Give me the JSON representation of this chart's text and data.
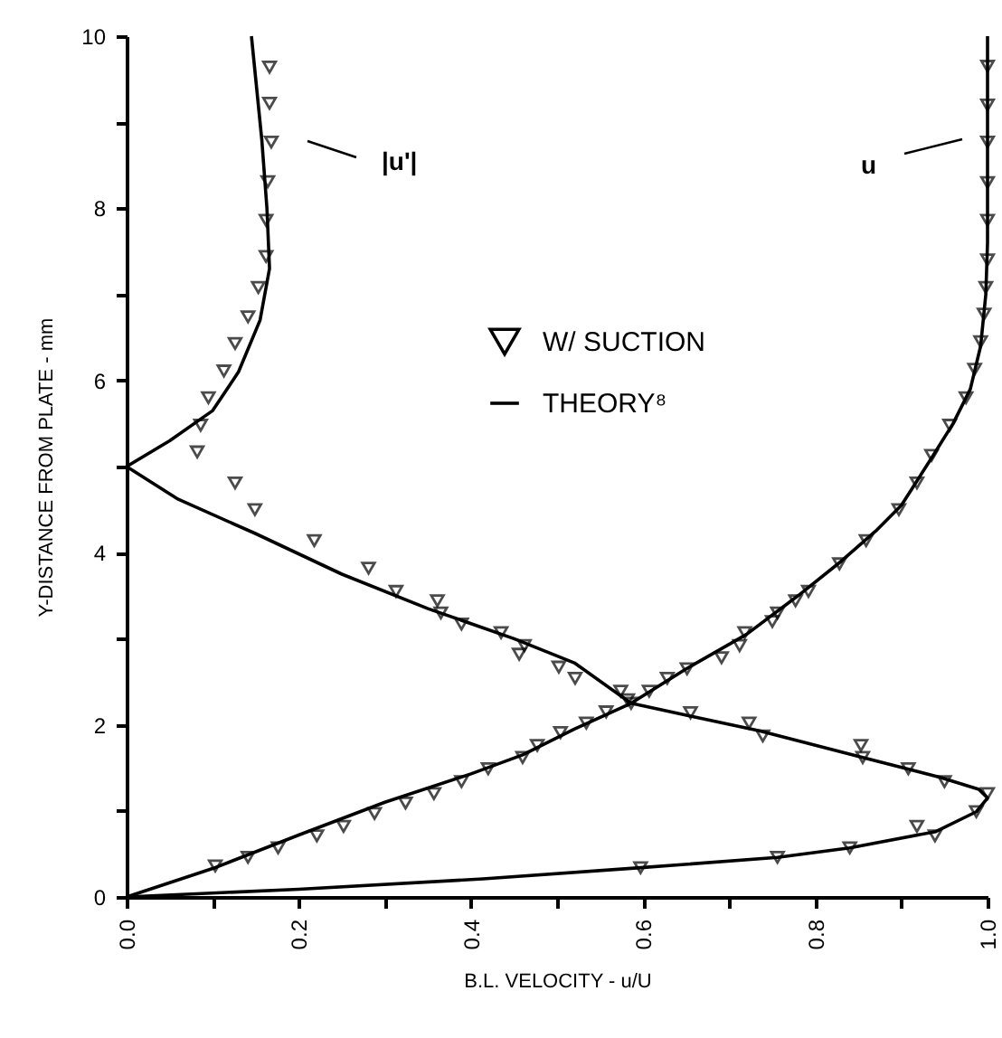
{
  "chart_data": {
    "type": "line",
    "xlabel": "B.L. VELOCITY - u/U",
    "ylabel": "Y-DISTANCE FROM PLATE - mm",
    "xlim": [
      0,
      1
    ],
    "ylim": [
      0,
      10
    ],
    "xticks": [
      {
        "value": 0,
        "label": "0.0"
      },
      {
        "value": 0.1,
        "label": null
      },
      {
        "value": 0.2,
        "label": "0.2"
      },
      {
        "value": 0.3,
        "label": null
      },
      {
        "value": 0.4,
        "label": "0.4"
      },
      {
        "value": 0.5,
        "label": null
      },
      {
        "value": 0.6,
        "label": "0.6"
      },
      {
        "value": 0.7,
        "label": null
      },
      {
        "value": 0.8,
        "label": "0.8"
      },
      {
        "value": 0.9,
        "label": null
      },
      {
        "value": 1,
        "label": "1.0"
      }
    ],
    "yticks": [
      0,
      {
        "value": 1,
        "label": null
      },
      2,
      {
        "value": 3,
        "label": null
      },
      4,
      {
        "value": 5,
        "label": null
      },
      6,
      {
        "value": 7,
        "label": null
      },
      8,
      {
        "value": 9,
        "label": null
      },
      10
    ],
    "grid": false,
    "legend": "top right",
    "line_style": "solid",
    "annotations": [
      "|u'|",
      "u"
    ],
    "series": [
      {
        "name": "THEORY⁸",
        "color": "#000000",
        "x": [
          0,
          0.1,
          0.2,
          0.3,
          0.4,
          0.46,
          0.52,
          0.586,
          0.65,
          0.72,
          0.78,
          0.83,
          0.87,
          0.9,
          0.935,
          0.96,
          0.98,
          0.992,
          0.998,
          1.0,
          1.0,
          1.0
        ],
        "values": [
          0,
          0.33,
          0.72,
          1.1,
          1.43,
          1.65,
          1.95,
          2.25,
          2.65,
          3.05,
          3.5,
          3.9,
          4.25,
          4.55,
          5.1,
          5.5,
          5.9,
          6.4,
          7.0,
          7.6,
          8.5,
          10
        ]
      },
      {
        "color": "#000000",
        "x": [
          0.145,
          0.157,
          0.163,
          0.166,
          0.155,
          0.13,
          0.1,
          0.05,
          0,
          0.06,
          0.15,
          0.25,
          0.35,
          0.45,
          0.52,
          0.586,
          0.655,
          0.735,
          0.855,
          0.945,
          0.99,
          1.0,
          0.987,
          0.94,
          0.84,
          0.756,
          0.597,
          0.414,
          0.2,
          0
        ],
        "values": [
          10,
          8.8,
          8.0,
          7.3,
          6.7,
          6.1,
          5.65,
          5.3,
          5,
          4.62,
          4.22,
          3.75,
          3.35,
          3.0,
          2.72,
          2.25,
          2.1,
          1.93,
          1.62,
          1.39,
          1.25,
          1.15,
          0.99,
          0.76,
          0.57,
          0.46,
          0.34,
          0.21,
          0.09,
          0
        ]
      },
      {
        "name": "W/ SUCTION",
        "type": "scatter",
        "marker": "triangle",
        "color": "#000000",
        "x": [
          0.103,
          0.141,
          0.176,
          0.221,
          0.252,
          0.288,
          0.324,
          0.357,
          0.389,
          0.42,
          0.46,
          0.477,
          0.504,
          0.534,
          0.557,
          0.586,
          0.607,
          0.628,
          0.651,
          0.691,
          0.712,
          0.718,
          0.75,
          0.756,
          0.777,
          0.792,
          0.828,
          0.859,
          0.897,
          0.918,
          0.935,
          0.956,
          0.975,
          0.985,
          0.992,
          0.996,
          0.998,
          1.0,
          1.0,
          1.0,
          1.0,
          1.0,
          1.0
        ],
        "values": [
          0.36,
          0.46,
          0.57,
          0.71,
          0.82,
          0.97,
          1.09,
          1.2,
          1.34,
          1.49,
          1.62,
          1.76,
          1.91,
          2.02,
          2.15,
          2.25,
          2.39,
          2.54,
          2.65,
          2.78,
          2.92,
          3.07,
          3.2,
          3.3,
          3.44,
          3.55,
          3.87,
          4.14,
          4.5,
          4.81,
          5.13,
          5.48,
          5.8,
          6.13,
          6.45,
          6.77,
          7.08,
          7.4,
          7.86,
          8.3,
          8.77,
          9.2,
          9.65
        ]
      },
      {
        "type": "scatter",
        "marker": "triangle",
        "color": "#000000",
        "x": [
          0.166,
          0.166,
          0.168,
          0.164,
          0.162,
          0.162,
          0.153,
          0.141,
          0.126,
          0.113,
          0.095,
          0.086,
          0.082,
          0.126,
          0.149,
          0.218,
          0.281,
          0.313,
          0.361,
          0.365,
          0.389,
          0.435,
          0.462,
          0.456,
          0.502,
          0.521,
          0.574,
          0.582,
          0.655,
          0.723,
          0.739,
          0.853,
          0.855,
          0.908,
          0.95,
          1.0,
          0.987,
          0.918,
          0.939,
          0.84,
          0.756,
          0.597
        ],
        "values": [
          9.64,
          9.22,
          8.77,
          8.31,
          7.86,
          7.44,
          7.08,
          6.74,
          6.43,
          6.11,
          5.8,
          5.48,
          5.17,
          4.81,
          4.5,
          4.14,
          3.82,
          3.55,
          3.44,
          3.3,
          3.17,
          3.07,
          2.92,
          2.82,
          2.67,
          2.54,
          2.39,
          2.29,
          2.14,
          2.02,
          1.87,
          1.76,
          1.62,
          1.49,
          1.34,
          1.2,
          0.99,
          0.82,
          0.71,
          0.57,
          0.46,
          0.34
        ]
      }
    ]
  }
}
